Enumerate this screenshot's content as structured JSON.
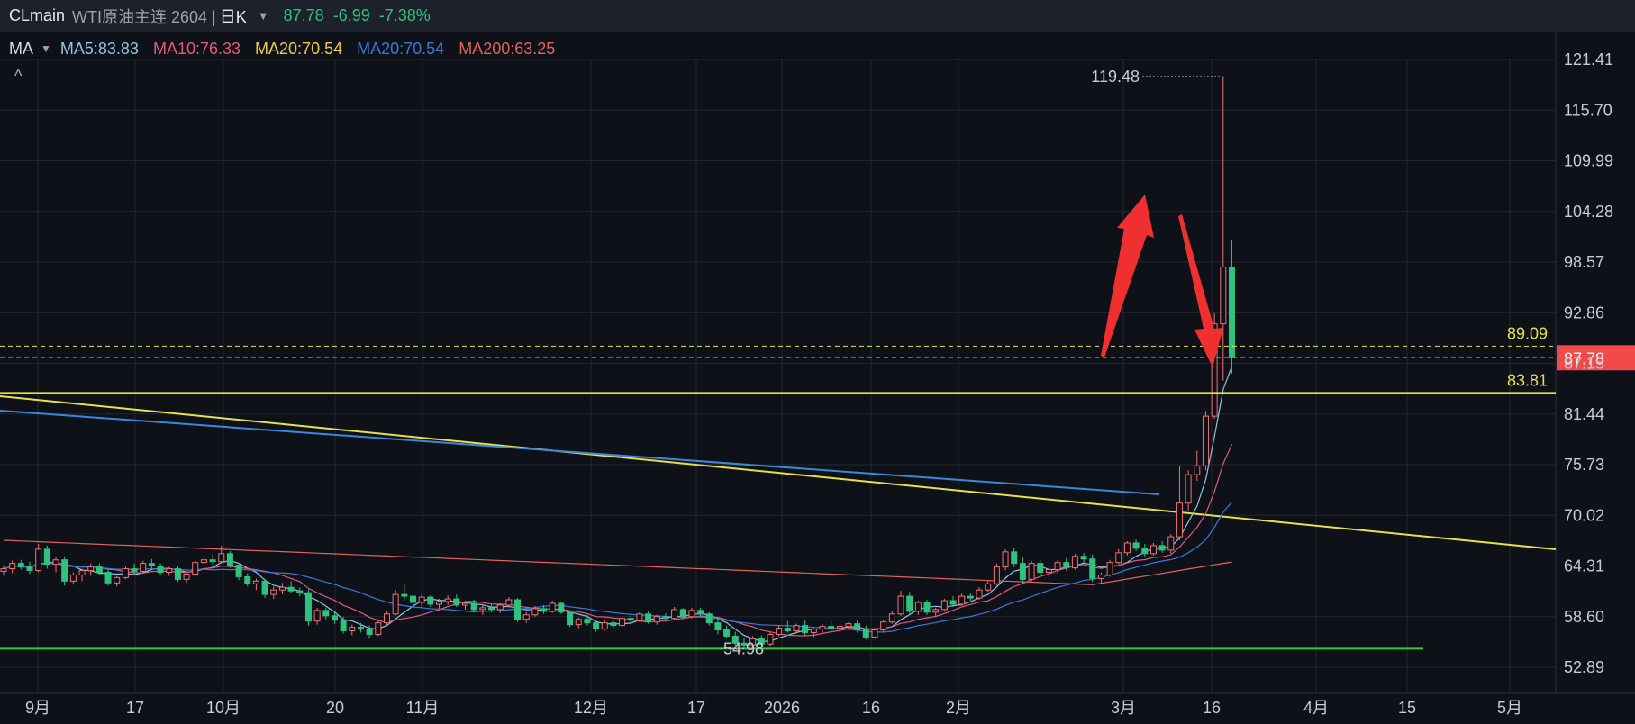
{
  "header": {
    "symbol": "CLmain",
    "name": "WTI原油主连 2604 |",
    "period": "日K",
    "last_price": "87.78",
    "change": "-6.99",
    "change_pct": "-7.38%",
    "dropdown_icon": "caret-down-icon"
  },
  "ma_legend": {
    "title": "MA",
    "items": [
      {
        "label": "MA5:83.83",
        "color": "#8ec6e6"
      },
      {
        "label": "MA10:76.33",
        "color": "#e05a7e"
      },
      {
        "label": "MA20:70.54",
        "color": "#f0c94a"
      },
      {
        "label": "MA20:70.54",
        "color": "#3a78d8"
      },
      {
        "label": "MA200:63.25",
        "color": "#e0645a"
      }
    ]
  },
  "collapse_icon": "chevron-up-icon",
  "chart_data": {
    "type": "candlestick",
    "y_ticks": [
      "121.41",
      "115.70",
      "109.99",
      "104.28",
      "98.57",
      "92.86",
      "87.15",
      "81.44",
      "75.73",
      "70.02",
      "64.31",
      "58.60",
      "52.89"
    ],
    "y_range": [
      52.89,
      121.41
    ],
    "x_ticks": [
      "9月",
      "17",
      "10月",
      "20",
      "11月",
      "12月",
      "17",
      "2026",
      "16",
      "2月",
      "3月",
      "16",
      "4月",
      "15",
      "5月"
    ],
    "current_price_label": "87.78",
    "horizontal_lines": [
      {
        "value": 89.09,
        "label": "89.09",
        "style": "dashed",
        "color": "#e8e04a"
      },
      {
        "value": 87.78,
        "style": "dashed",
        "color": "#e05a5a"
      },
      {
        "value": 83.81,
        "label": "83.81",
        "style": "solid",
        "color": "#e8e04a"
      },
      {
        "value": 54.98,
        "style": "solid",
        "color": "#2ecc2e"
      }
    ],
    "annotations": [
      {
        "text": "119.48",
        "kind": "high-marker"
      },
      {
        "text": "54.98",
        "kind": "low-marker"
      }
    ],
    "trendlines": [
      {
        "name": "yellow-trendline",
        "color": "#e8e04a"
      },
      {
        "name": "blue-trendline",
        "color": "#3a88d8"
      }
    ],
    "arrows": [
      {
        "direction": "up",
        "color": "#f03030"
      },
      {
        "direction": "down",
        "color": "#f03030"
      }
    ],
    "candles": [
      [
        63.7,
        64.4,
        63.2,
        64.0
      ],
      [
        64.0,
        64.9,
        63.5,
        64.6
      ],
      [
        64.6,
        65.0,
        63.9,
        64.2
      ],
      [
        64.2,
        64.8,
        63.4,
        63.8
      ],
      [
        63.8,
        66.8,
        63.6,
        66.2
      ],
      [
        66.2,
        66.6,
        64.0,
        64.5
      ],
      [
        64.5,
        65.3,
        63.6,
        65.0
      ],
      [
        65.0,
        65.4,
        62.1,
        62.6
      ],
      [
        62.6,
        63.6,
        62.2,
        63.3
      ],
      [
        63.3,
        64.0,
        62.6,
        63.8
      ],
      [
        63.8,
        64.6,
        63.2,
        64.2
      ],
      [
        64.2,
        64.6,
        63.3,
        63.6
      ],
      [
        63.6,
        63.9,
        62.1,
        62.4
      ],
      [
        62.4,
        63.2,
        62.0,
        63.0
      ],
      [
        63.0,
        64.3,
        62.8,
        64.0
      ],
      [
        64.0,
        64.6,
        63.4,
        63.7
      ],
      [
        63.7,
        64.9,
        63.5,
        64.6
      ],
      [
        64.6,
        65.1,
        64.0,
        64.3
      ],
      [
        64.3,
        64.6,
        63.3,
        63.6
      ],
      [
        63.6,
        64.2,
        63.2,
        64.0
      ],
      [
        64.0,
        64.3,
        62.5,
        62.8
      ],
      [
        62.8,
        63.6,
        62.4,
        63.4
      ],
      [
        63.4,
        64.9,
        63.1,
        64.7
      ],
      [
        64.7,
        65.3,
        64.2,
        65.0
      ],
      [
        65.0,
        65.6,
        64.4,
        64.8
      ],
      [
        64.8,
        66.6,
        64.6,
        65.7
      ],
      [
        65.7,
        66.0,
        64.1,
        64.4
      ],
      [
        64.4,
        64.7,
        62.7,
        63.1
      ],
      [
        63.1,
        63.5,
        62.0,
        62.3
      ],
      [
        62.3,
        62.9,
        61.6,
        62.6
      ],
      [
        62.6,
        62.9,
        60.7,
        61.1
      ],
      [
        61.1,
        62.0,
        60.6,
        61.6
      ],
      [
        61.6,
        62.4,
        61.1,
        61.9
      ],
      [
        61.9,
        62.6,
        61.3,
        61.5
      ],
      [
        61.5,
        61.9,
        60.9,
        61.3
      ],
      [
        61.3,
        61.7,
        57.6,
        58.1
      ],
      [
        58.1,
        59.6,
        57.7,
        59.3
      ],
      [
        59.3,
        59.6,
        58.3,
        58.7
      ],
      [
        58.7,
        59.1,
        57.8,
        58.2
      ],
      [
        58.2,
        58.6,
        56.7,
        57.0
      ],
      [
        57.0,
        57.7,
        56.5,
        57.4
      ],
      [
        57.4,
        57.9,
        56.8,
        57.2
      ],
      [
        57.2,
        57.6,
        56.1,
        56.6
      ],
      [
        56.6,
        58.3,
        56.4,
        57.9
      ],
      [
        57.9,
        59.2,
        57.6,
        58.9
      ],
      [
        58.9,
        61.6,
        58.7,
        61.1
      ],
      [
        61.1,
        62.3,
        60.4,
        60.9
      ],
      [
        60.9,
        61.5,
        59.8,
        60.2
      ],
      [
        60.2,
        61.2,
        59.6,
        60.8
      ],
      [
        60.8,
        61.0,
        59.7,
        60.0
      ],
      [
        60.0,
        60.6,
        59.5,
        60.3
      ],
      [
        60.3,
        61.0,
        59.9,
        60.6
      ],
      [
        60.6,
        61.1,
        59.7,
        59.9
      ],
      [
        59.9,
        60.4,
        59.4,
        60.1
      ],
      [
        60.1,
        60.5,
        59.1,
        59.4
      ],
      [
        59.4,
        59.9,
        58.8,
        59.6
      ],
      [
        59.6,
        60.0,
        59.1,
        59.4
      ],
      [
        59.4,
        60.1,
        59.0,
        59.9
      ],
      [
        59.9,
        60.8,
        59.6,
        60.5
      ],
      [
        60.5,
        60.7,
        58.0,
        58.3
      ],
      [
        58.3,
        59.1,
        57.9,
        58.8
      ],
      [
        58.8,
        59.8,
        58.6,
        59.5
      ],
      [
        59.5,
        59.9,
        58.9,
        59.2
      ],
      [
        59.2,
        60.4,
        59.0,
        60.1
      ],
      [
        60.1,
        60.3,
        58.9,
        59.1
      ],
      [
        59.1,
        59.3,
        57.4,
        57.7
      ],
      [
        57.7,
        58.5,
        57.3,
        58.3
      ],
      [
        58.3,
        58.8,
        57.6,
        57.9
      ],
      [
        57.9,
        58.2,
        56.9,
        57.2
      ],
      [
        57.2,
        58.2,
        57.0,
        57.9
      ],
      [
        57.9,
        58.3,
        57.3,
        57.6
      ],
      [
        57.6,
        58.6,
        57.4,
        58.4
      ],
      [
        58.4,
        58.9,
        57.9,
        58.2
      ],
      [
        58.2,
        59.1,
        58.0,
        58.9
      ],
      [
        58.9,
        59.2,
        57.8,
        58.0
      ],
      [
        58.0,
        58.8,
        57.7,
        58.6
      ],
      [
        58.6,
        59.0,
        58.1,
        58.4
      ],
      [
        58.4,
        59.7,
        58.2,
        59.4
      ],
      [
        59.4,
        59.6,
        58.3,
        58.6
      ],
      [
        58.6,
        59.6,
        58.4,
        59.3
      ],
      [
        59.3,
        59.6,
        58.7,
        58.9
      ],
      [
        58.9,
        59.1,
        57.6,
        57.9
      ],
      [
        57.9,
        58.5,
        56.6,
        57.1
      ],
      [
        57.1,
        57.6,
        56.2,
        56.4
      ],
      [
        56.4,
        56.9,
        55.3,
        55.6
      ],
      [
        55.6,
        56.2,
        54.98,
        55.4
      ],
      [
        55.4,
        56.4,
        55.0,
        56.1
      ],
      [
        56.1,
        56.5,
        55.1,
        55.5
      ],
      [
        55.5,
        56.8,
        55.3,
        56.6
      ],
      [
        56.6,
        57.6,
        56.4,
        57.3
      ],
      [
        57.3,
        58.1,
        56.8,
        57.0
      ],
      [
        57.0,
        57.8,
        56.7,
        57.6
      ],
      [
        57.6,
        58.2,
        56.5,
        56.8
      ],
      [
        56.8,
        57.4,
        56.3,
        57.2
      ],
      [
        57.2,
        57.8,
        56.8,
        57.5
      ],
      [
        57.5,
        58.1,
        57.0,
        57.3
      ],
      [
        57.3,
        57.7,
        56.9,
        57.5
      ],
      [
        57.5,
        58.0,
        57.1,
        57.8
      ],
      [
        57.8,
        58.2,
        56.8,
        57.1
      ],
      [
        57.1,
        57.6,
        56.0,
        56.3
      ],
      [
        56.3,
        57.3,
        56.1,
        57.1
      ],
      [
        57.1,
        58.2,
        56.9,
        58.0
      ],
      [
        58.0,
        59.2,
        57.8,
        58.9
      ],
      [
        58.9,
        61.5,
        58.7,
        60.9
      ],
      [
        60.9,
        61.4,
        58.9,
        59.2
      ],
      [
        59.2,
        60.4,
        58.8,
        60.2
      ],
      [
        60.2,
        60.5,
        58.8,
        59.1
      ],
      [
        59.1,
        59.6,
        58.6,
        59.4
      ],
      [
        59.4,
        60.6,
        59.2,
        60.4
      ],
      [
        60.4,
        60.9,
        59.7,
        60.0
      ],
      [
        60.0,
        61.2,
        59.8,
        60.9
      ],
      [
        60.9,
        61.3,
        60.4,
        60.7
      ],
      [
        60.7,
        61.9,
        60.5,
        61.6
      ],
      [
        61.6,
        62.6,
        61.4,
        62.3
      ],
      [
        62.3,
        64.6,
        62.1,
        64.2
      ],
      [
        64.2,
        66.2,
        63.8,
        65.9
      ],
      [
        65.9,
        66.4,
        64.2,
        64.6
      ],
      [
        64.6,
        65.3,
        62.3,
        62.8
      ],
      [
        62.8,
        64.9,
        62.5,
        64.6
      ],
      [
        64.6,
        65.0,
        63.3,
        63.6
      ],
      [
        63.6,
        64.3,
        63.0,
        63.9
      ],
      [
        63.9,
        65.0,
        63.5,
        64.7
      ],
      [
        64.7,
        65.2,
        63.8,
        64.1
      ],
      [
        64.1,
        65.7,
        63.9,
        65.4
      ],
      [
        65.4,
        65.8,
        64.7,
        65.1
      ],
      [
        65.1,
        65.6,
        62.5,
        62.9
      ],
      [
        62.9,
        63.6,
        62.4,
        63.3
      ],
      [
        63.3,
        65.0,
        63.1,
        64.7
      ],
      [
        64.7,
        66.2,
        64.5,
        65.8
      ],
      [
        65.8,
        67.1,
        65.5,
        66.9
      ],
      [
        66.9,
        67.3,
        66.0,
        66.3
      ],
      [
        66.3,
        66.8,
        65.4,
        65.7
      ],
      [
        65.7,
        66.9,
        65.5,
        66.6
      ],
      [
        66.6,
        67.1,
        65.8,
        66.1
      ],
      [
        66.1,
        67.9,
        65.7,
        67.6
      ],
      [
        67.6,
        75.6,
        67.2,
        71.4
      ],
      [
        71.4,
        75.1,
        70.6,
        74.6
      ],
      [
        74.6,
        77.3,
        73.9,
        75.6
      ],
      [
        75.6,
        81.8,
        75.1,
        81.2
      ],
      [
        81.2,
        92.8,
        80.9,
        91.6
      ],
      [
        91.6,
        119.48,
        85.2,
        98.0
      ],
      [
        98.0,
        101.0,
        86.0,
        87.78
      ]
    ]
  }
}
